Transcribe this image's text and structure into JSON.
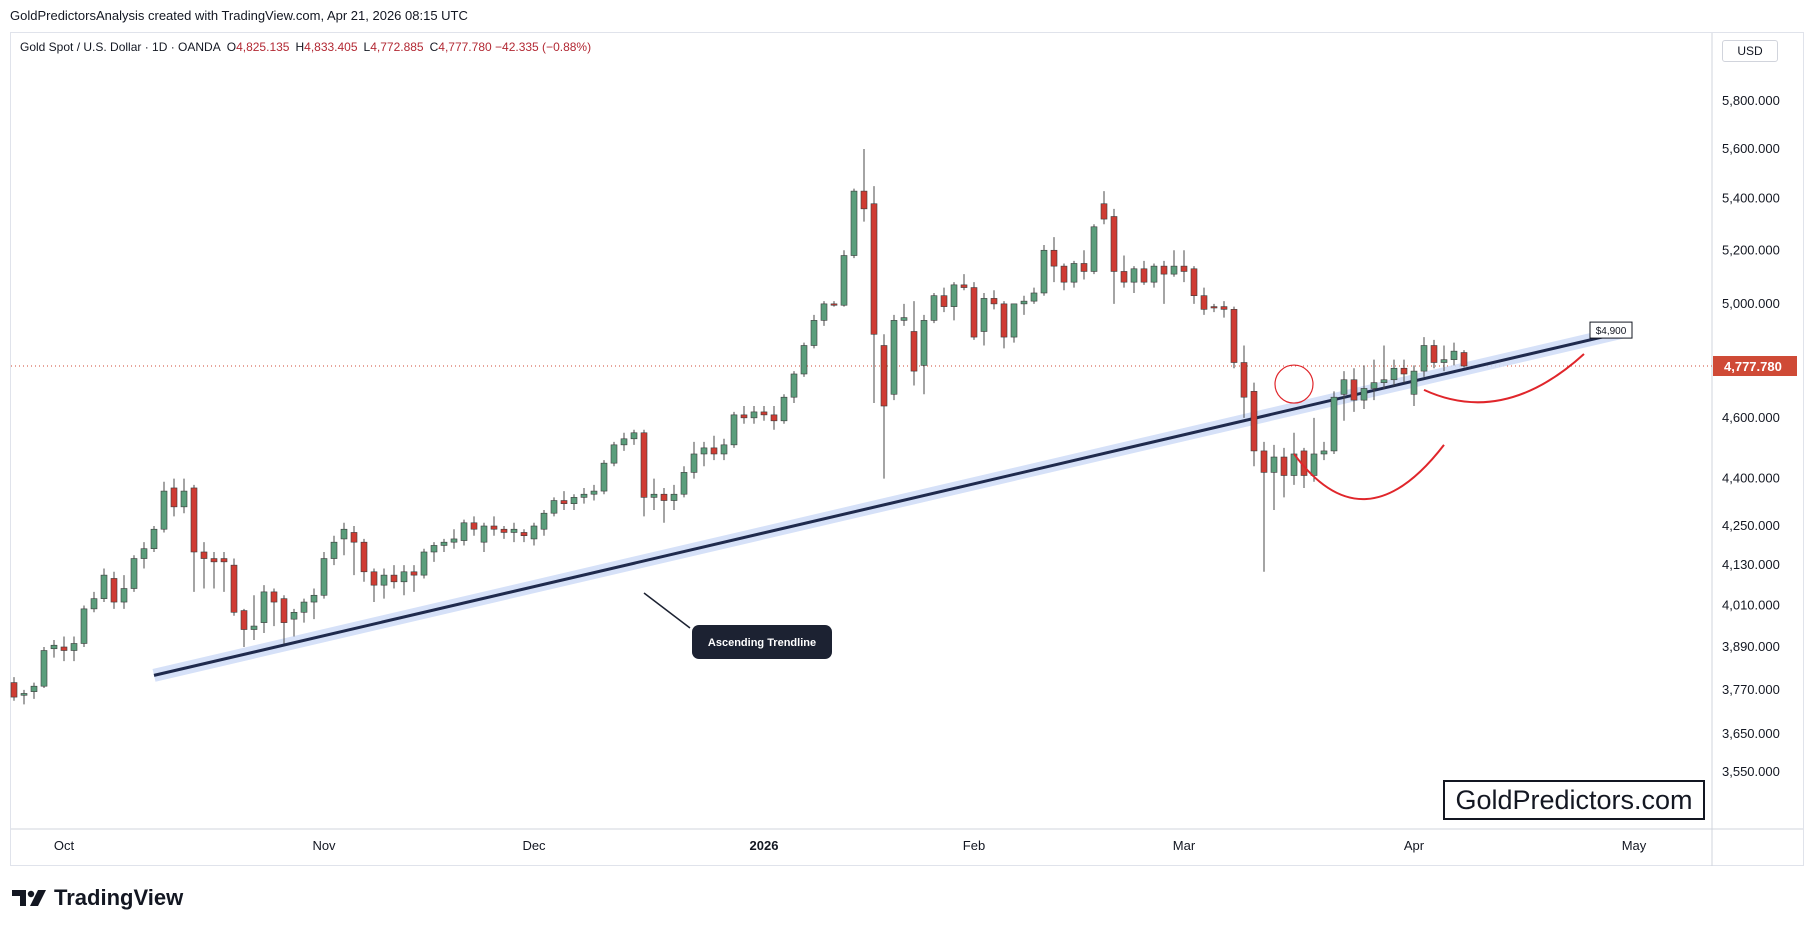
{
  "header": {
    "credit": "GoldPredictorsAnalysis created with TradingView.com, Apr 21, 2026 08:15 UTC"
  },
  "legend": {
    "symbol": "Gold Spot / U.S. Dollar · 1D · OANDA",
    "open_label": "O",
    "open": "4,825.135",
    "high_label": "H",
    "high": "4,833.405",
    "low_label": "L",
    "low": "4,772.885",
    "close_label": "C",
    "close": "4,777.780",
    "change": "−42.335 (−0.88%)"
  },
  "currency_button": "USD",
  "brand_label": "GoldPredictors.com",
  "footer_logo": "TradingView",
  "colors": {
    "up": "#5b9e7c",
    "down": "#cf3c33",
    "wick": "#4a4a4a",
    "trendline": "#1f2a4d",
    "trendband": "#cfdcf7",
    "pattern": "#e0262b",
    "price_tag": "#cf4a36"
  },
  "chart_data": {
    "type": "candlestick",
    "symbol": "Gold Spot / U.S. Dollar",
    "interval": "1D",
    "scale": "log",
    "ylim": [
      3480,
      6000
    ],
    "y_ticks": [
      {
        "value": 5800,
        "label": "5,800.000"
      },
      {
        "value": 5600,
        "label": "5,600.000"
      },
      {
        "value": 5400,
        "label": "5,400.000"
      },
      {
        "value": 5200,
        "label": "5,200.000"
      },
      {
        "value": 5000,
        "label": "5,000.000"
      },
      {
        "value": 4600,
        "label": "4,600.000"
      },
      {
        "value": 4400,
        "label": "4,400.000"
      },
      {
        "value": 4250,
        "label": "4,250.000"
      },
      {
        "value": 4130,
        "label": "4,130.000"
      },
      {
        "value": 4010,
        "label": "4,010.000"
      },
      {
        "value": 3890,
        "label": "3,890.000"
      },
      {
        "value": 3770,
        "label": "3,770.000"
      },
      {
        "value": 3650,
        "label": "3,650.000"
      },
      {
        "value": 3550,
        "label": "3,550.000"
      }
    ],
    "x_ticks": [
      {
        "index": 5,
        "label": "Oct",
        "bold": false
      },
      {
        "index": 31,
        "label": "Nov",
        "bold": false
      },
      {
        "index": 52,
        "label": "Dec",
        "bold": false
      },
      {
        "index": 75,
        "label": "2026",
        "bold": true
      },
      {
        "index": 96,
        "label": "Feb",
        "bold": false
      },
      {
        "index": 117,
        "label": "Mar",
        "bold": false
      },
      {
        "index": 140,
        "label": "Apr",
        "bold": false
      },
      {
        "index": 162,
        "label": "May",
        "bold": false
      }
    ],
    "last_price": {
      "value": 4777.78,
      "label": "4,777.780"
    },
    "candles": [
      [
        3790,
        3805,
        3740,
        3750
      ],
      [
        3755,
        3770,
        3730,
        3760
      ],
      [
        3765,
        3790,
        3745,
        3780
      ],
      [
        3780,
        3890,
        3775,
        3880
      ],
      [
        3885,
        3910,
        3860,
        3895
      ],
      [
        3890,
        3920,
        3850,
        3880
      ],
      [
        3880,
        3920,
        3850,
        3900
      ],
      [
        3900,
        4010,
        3890,
        4000
      ],
      [
        4000,
        4050,
        3990,
        4030
      ],
      [
        4030,
        4120,
        4020,
        4100
      ],
      [
        4090,
        4110,
        4000,
        4020
      ],
      [
        4020,
        4100,
        4000,
        4060
      ],
      [
        4060,
        4160,
        4050,
        4150
      ],
      [
        4150,
        4200,
        4120,
        4180
      ],
      [
        4180,
        4250,
        4170,
        4240
      ],
      [
        4240,
        4390,
        4230,
        4360
      ],
      [
        4370,
        4400,
        4280,
        4310
      ],
      [
        4310,
        4400,
        4290,
        4360
      ],
      [
        4370,
        4380,
        4050,
        4170
      ],
      [
        4170,
        4200,
        4060,
        4150
      ],
      [
        4150,
        4170,
        4060,
        4140
      ],
      [
        4150,
        4170,
        4050,
        4140
      ],
      [
        4130,
        4150,
        3980,
        3990
      ],
      [
        3995,
        4000,
        3890,
        3940
      ],
      [
        3940,
        4040,
        3910,
        3950
      ],
      [
        3960,
        4070,
        3930,
        4050
      ],
      [
        4050,
        4060,
        3950,
        4020
      ],
      [
        4030,
        4040,
        3900,
        3960
      ],
      [
        3970,
        4000,
        3920,
        3990
      ],
      [
        3990,
        4030,
        3960,
        4020
      ],
      [
        4020,
        4060,
        3970,
        4040
      ],
      [
        4040,
        4170,
        4030,
        4150
      ],
      [
        4150,
        4220,
        4130,
        4200
      ],
      [
        4210,
        4260,
        4160,
        4240
      ],
      [
        4230,
        4250,
        4100,
        4200
      ],
      [
        4200,
        4210,
        4080,
        4110
      ],
      [
        4110,
        4120,
        4020,
        4070
      ],
      [
        4070,
        4120,
        4030,
        4100
      ],
      [
        4100,
        4130,
        4060,
        4080
      ],
      [
        4080,
        4130,
        4040,
        4110
      ],
      [
        4110,
        4130,
        4050,
        4100
      ],
      [
        4100,
        4180,
        4090,
        4170
      ],
      [
        4170,
        4200,
        4140,
        4190
      ],
      [
        4190,
        4210,
        4170,
        4200
      ],
      [
        4200,
        4240,
        4180,
        4210
      ],
      [
        4205,
        4270,
        4190,
        4260
      ],
      [
        4260,
        4280,
        4220,
        4240
      ],
      [
        4200,
        4260,
        4170,
        4250
      ],
      [
        4250,
        4280,
        4220,
        4240
      ],
      [
        4240,
        4250,
        4210,
        4230
      ],
      [
        4230,
        4260,
        4200,
        4240
      ],
      [
        4230,
        4240,
        4200,
        4220
      ],
      [
        4210,
        4260,
        4190,
        4250
      ],
      [
        4240,
        4300,
        4220,
        4290
      ],
      [
        4290,
        4340,
        4280,
        4330
      ],
      [
        4330,
        4360,
        4300,
        4320
      ],
      [
        4320,
        4350,
        4300,
        4340
      ],
      [
        4340,
        4370,
        4320,
        4350
      ],
      [
        4350,
        4380,
        4330,
        4360
      ],
      [
        4360,
        4460,
        4350,
        4450
      ],
      [
        4450,
        4520,
        4440,
        4510
      ],
      [
        4510,
        4550,
        4490,
        4530
      ],
      [
        4530,
        4560,
        4510,
        4550
      ],
      [
        4550,
        4560,
        4280,
        4340
      ],
      [
        4340,
        4400,
        4300,
        4350
      ],
      [
        4350,
        4370,
        4260,
        4330
      ],
      [
        4330,
        4380,
        4300,
        4350
      ],
      [
        4350,
        4440,
        4340,
        4420
      ],
      [
        4420,
        4520,
        4400,
        4480
      ],
      [
        4480,
        4520,
        4440,
        4500
      ],
      [
        4500,
        4540,
        4460,
        4480
      ],
      [
        4480,
        4530,
        4460,
        4510
      ],
      [
        4510,
        4620,
        4500,
        4610
      ],
      [
        4610,
        4640,
        4580,
        4600
      ],
      [
        4600,
        4640,
        4580,
        4620
      ],
      [
        4620,
        4640,
        4590,
        4610
      ],
      [
        4610,
        4640,
        4560,
        4590
      ],
      [
        4590,
        4680,
        4580,
        4670
      ],
      [
        4670,
        4760,
        4650,
        4750
      ],
      [
        4750,
        4860,
        4740,
        4850
      ],
      [
        4850,
        4960,
        4840,
        4940
      ],
      [
        4940,
        5010,
        4920,
        5000
      ],
      [
        5000,
        5010,
        4990,
        4995
      ],
      [
        4995,
        5200,
        4990,
        5180
      ],
      [
        5180,
        5440,
        5170,
        5430
      ],
      [
        5430,
        5600,
        5310,
        5360
      ],
      [
        5380,
        5450,
        4650,
        4890
      ],
      [
        4850,
        4890,
        4400,
        4640
      ],
      [
        4680,
        4960,
        4660,
        4940
      ],
      [
        4940,
        5000,
        4920,
        4950
      ],
      [
        4900,
        5010,
        4710,
        4760
      ],
      [
        4780,
        4960,
        4680,
        4940
      ],
      [
        4940,
        5040,
        4930,
        5030
      ],
      [
        5030,
        5060,
        4970,
        4990
      ],
      [
        4990,
        5080,
        4940,
        5070
      ],
      [
        5070,
        5110,
        5050,
        5060
      ],
      [
        5060,
        5080,
        4870,
        4880
      ],
      [
        4900,
        5040,
        4850,
        5020
      ],
      [
        5020,
        5050,
        4980,
        5000
      ],
      [
        5000,
        5010,
        4840,
        4880
      ],
      [
        4880,
        5000,
        4860,
        5000
      ],
      [
        5000,
        5030,
        4960,
        5010
      ],
      [
        5010,
        5060,
        5000,
        5040
      ],
      [
        5040,
        5220,
        5030,
        5200
      ],
      [
        5200,
        5250,
        5080,
        5140
      ],
      [
        5140,
        5150,
        5050,
        5080
      ],
      [
        5080,
        5160,
        5060,
        5150
      ],
      [
        5150,
        5200,
        5090,
        5120
      ],
      [
        5120,
        5300,
        5110,
        5290
      ],
      [
        5380,
        5430,
        5300,
        5320
      ],
      [
        5330,
        5360,
        5000,
        5120
      ],
      [
        5120,
        5180,
        5060,
        5080
      ],
      [
        5080,
        5140,
        5040,
        5130
      ],
      [
        5130,
        5160,
        5070,
        5080
      ],
      [
        5080,
        5150,
        5060,
        5140
      ],
      [
        5140,
        5160,
        5000,
        5110
      ],
      [
        5110,
        5200,
        5100,
        5140
      ],
      [
        5140,
        5200,
        5080,
        5120
      ],
      [
        5130,
        5140,
        5000,
        5030
      ],
      [
        5030,
        5060,
        4960,
        4980
      ],
      [
        4990,
        5000,
        4970,
        4985
      ],
      [
        4990,
        5010,
        4950,
        4980
      ],
      [
        4980,
        4990,
        4770,
        4790
      ],
      [
        4790,
        4850,
        4600,
        4670
      ],
      [
        4690,
        4720,
        4440,
        4490
      ],
      [
        4490,
        4520,
        4110,
        4420
      ],
      [
        4420,
        4510,
        4300,
        4470
      ],
      [
        4470,
        4500,
        4340,
        4410
      ],
      [
        4410,
        4550,
        4380,
        4480
      ],
      [
        4490,
        4500,
        4370,
        4410
      ],
      [
        4410,
        4600,
        4390,
        4480
      ],
      [
        4480,
        4520,
        4460,
        4490
      ],
      [
        4490,
        4690,
        4480,
        4670
      ],
      [
        4680,
        4760,
        4590,
        4730
      ],
      [
        4730,
        4770,
        4620,
        4660
      ],
      [
        4660,
        4780,
        4630,
        4700
      ],
      [
        4700,
        4800,
        4660,
        4720
      ],
      [
        4720,
        4850,
        4700,
        4730
      ],
      [
        4730,
        4800,
        4710,
        4770
      ],
      [
        4770,
        4800,
        4720,
        4750
      ],
      [
        4680,
        4780,
        4640,
        4760
      ],
      [
        4760,
        4880,
        4740,
        4850
      ],
      [
        4850,
        4870,
        4770,
        4790
      ],
      [
        4790,
        4850,
        4760,
        4800
      ],
      [
        4800,
        4860,
        4780,
        4830
      ],
      [
        4825.135,
        4833.405,
        4772.885,
        4777.78
      ]
    ],
    "annotations": [
      {
        "type": "trendline",
        "label": "Ascending Trendline"
      },
      {
        "type": "price_label",
        "label": "$4,900"
      },
      {
        "type": "circle",
        "label": ""
      },
      {
        "type": "arc",
        "label": ""
      },
      {
        "type": "arc",
        "label": ""
      }
    ]
  }
}
